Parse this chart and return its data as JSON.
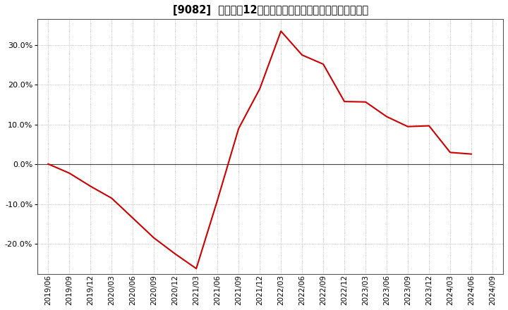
{
  "title": "[9082]  売上高の12か月移動合計の対前年同期増減率の推移",
  "line_color": "#cc0000",
  "background_color": "#ffffff",
  "plot_bg_color": "#ffffff",
  "grid_color": "#aaaaaa",
  "ylim": [
    -0.275,
    0.365
  ],
  "yticks": [
    -0.2,
    -0.1,
    0.0,
    0.1,
    0.2,
    0.3
  ],
  "dates": [
    "2019/06",
    "2019/09",
    "2019/12",
    "2020/03",
    "2020/06",
    "2020/09",
    "2020/12",
    "2021/03",
    "2021/06",
    "2021/09",
    "2021/12",
    "2022/03",
    "2022/06",
    "2022/09",
    "2022/12",
    "2023/03",
    "2023/06",
    "2023/09",
    "2023/12",
    "2024/03",
    "2024/06",
    "2024/09"
  ],
  "values": [
    0.001,
    -0.022,
    -0.055,
    -0.085,
    -0.135,
    -0.185,
    -0.225,
    -0.262,
    -0.09,
    0.09,
    0.19,
    0.335,
    0.275,
    0.252,
    0.158,
    0.157,
    0.12,
    0.095,
    0.097,
    0.03,
    0.026,
    null
  ],
  "title_fontsize": 10.5,
  "tick_fontsize": 7.5,
  "ytick_fontsize": 8
}
